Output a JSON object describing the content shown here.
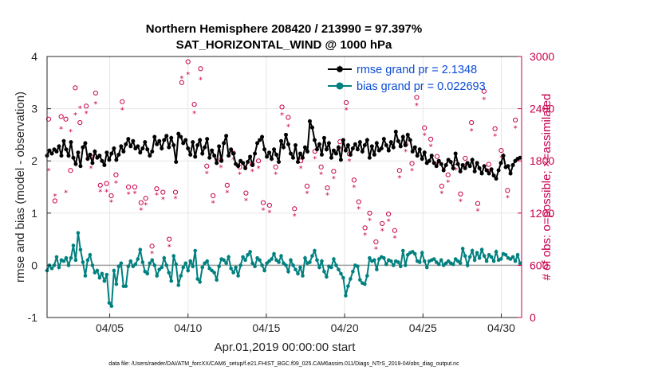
{
  "chart_data": {
    "type": "line",
    "title": "Northern Hemisphere 208420 / 213990 = 97.397%",
    "subtitle": "SAT_HORIZONTAL_WIND @ 1000 hPa",
    "xlabel": "Apr.01,2019 00:00:00 start",
    "ylabel": "rmse and bias (model - observation)",
    "ylabel_right": "# of obs: o=possible; ×=assimilated",
    "footnote": "data file: /Users/raeder/DAI/ATM_forcXX/CAM6_setup/f.e21.FHIST_BGC.f09_025.CAM6assim.011/Diags_NTrS_2019-04/obs_diag_output.nc",
    "xlim": [
      1.0,
      31.3
    ],
    "ylim": [
      -1,
      4
    ],
    "ylim_right": [
      0,
      3000
    ],
    "x_ticks": [
      5,
      10,
      15,
      20,
      25,
      30
    ],
    "x_tick_labels": [
      "04/05",
      "04/10",
      "04/15",
      "04/20",
      "04/25",
      "04/30"
    ],
    "y_ticks": [
      -1,
      0,
      1,
      2,
      3,
      4
    ],
    "y_tick_labels": [
      "-1",
      "0",
      "1",
      "2",
      "3",
      "4"
    ],
    "y_ticks_right": [
      0,
      600,
      1200,
      1800,
      2400,
      3000
    ],
    "y_tick_labels_right": [
      "0",
      "600",
      "1200",
      "1800",
      "2400",
      "3000"
    ],
    "grid": true,
    "legend_position": "top-right",
    "colors": {
      "rmse": "#000000",
      "bias": "#00807f",
      "obs": "#c8004b",
      "zero_line": "#a0a0a0"
    },
    "series": [
      {
        "name": "rmse grand pr = 2.1348",
        "axis": "left",
        "values": [
          2.1,
          2.2,
          2.14,
          2.22,
          2.18,
          2.28,
          2.1,
          2.38,
          2.22,
          2.1,
          2.36,
          2.06,
          1.94,
          2.16,
          1.9,
          2.26,
          2.34,
          2.04,
          2.12,
          1.96,
          2.18,
          2.06,
          2.1,
          2.0,
          1.92,
          2.16,
          2.02,
          2.14,
          2.24,
          2.02,
          2.12,
          2.28,
          2.18,
          2.32,
          2.42,
          2.28,
          2.38,
          2.24,
          2.28,
          2.16,
          2.24,
          2.36,
          2.22,
          2.1,
          2.18,
          2.46,
          2.32,
          2.38,
          2.24,
          2.4,
          2.48,
          2.26,
          2.44,
          2.3,
          1.98,
          2.52,
          2.46,
          2.34,
          2.4,
          2.24,
          2.12,
          2.36,
          2.08,
          2.3,
          2.4,
          2.14,
          2.26,
          2.42,
          2.06,
          2.2,
          2.1,
          1.96,
          2.28,
          2.0,
          2.34,
          2.48,
          2.1,
          2.22,
          2.14,
          1.94,
          1.9,
          2.0,
          1.96,
          1.86,
          1.98,
          2.08,
          1.92,
          2.14,
          2.34,
          2.4,
          2.46,
          2.22,
          2.08,
          2.16,
          2.04,
          2.22,
          2.12,
          1.98,
          2.38,
          2.26,
          2.5,
          2.32,
          2.14,
          2.06,
          2.3,
          1.98,
          2.14,
          2.06,
          2.26,
          2.18,
          2.76,
          2.64,
          2.4,
          2.22,
          2.32,
          2.12,
          2.44,
          2.22,
          2.34,
          2.06,
          2.2,
          2.14,
          2.26,
          2.02,
          2.4,
          2.2,
          2.3,
          2.12,
          2.24,
          2.32,
          2.22,
          2.36,
          2.18,
          2.3,
          2.4,
          2.06,
          2.28,
          2.12,
          2.34,
          2.2,
          2.24,
          2.42,
          2.3,
          2.2,
          2.36,
          2.26,
          2.56,
          2.38,
          2.28,
          2.46,
          2.3,
          2.5,
          2.4,
          2.18,
          2.26,
          2.1,
          2.22,
          2.04,
          2.16,
          1.96,
          2.0,
          2.1,
          1.96,
          1.9,
          2.0,
          1.94,
          1.82,
          1.92,
          2.02,
          1.98,
          1.86,
          2.14,
          1.94,
          1.8,
          1.92,
          1.86,
          1.96,
          1.9,
          2.02,
          1.8,
          1.96,
          1.86,
          1.76,
          1.9,
          1.82,
          1.76,
          1.84,
          1.72,
          1.66,
          1.82,
          1.96,
          2.1,
          1.88,
          1.9,
          1.76,
          1.92,
          2.0,
          2.04,
          2.06
        ]
      },
      {
        "name": "bias grand pr = 0.022693",
        "axis": "left",
        "values": [
          -0.1,
          0.0,
          -0.06,
          0.0,
          0.16,
          -0.04,
          0.1,
          0.08,
          0.14,
          0.0,
          0.14,
          0.38,
          0.1,
          0.62,
          0.3,
          0.06,
          -0.2,
          0.1,
          0.2,
          0.0,
          -0.14,
          -0.1,
          -0.24,
          -0.16,
          -0.3,
          -0.18,
          -0.72,
          -0.78,
          -0.1,
          -0.36,
          -0.02,
          0.04,
          -0.4,
          -0.4,
          -0.02,
          0.08,
          -0.02,
          0.02,
          0.12,
          0.3,
          0.06,
          -0.12,
          -0.16,
          0.04,
          0.1,
          0.0,
          -0.2,
          -0.08,
          -0.04,
          0.14,
          0.0,
          -0.14,
          -0.3,
          0.18,
          0.02,
          -0.38,
          -0.2,
          -0.04,
          0.04,
          -0.1,
          0.08,
          -0.02,
          0.28,
          -0.26,
          -0.32,
          -0.04,
          0.04,
          0.08,
          -0.06,
          -0.1,
          -0.14,
          -0.28,
          -0.02,
          0.12,
          0.1,
          0.04,
          0.16,
          -0.06,
          -0.14,
          -0.04,
          -0.2,
          0.0,
          0.16,
          0.1,
          0.2,
          0.26,
          0.04,
          -0.02,
          0.14,
          0.1,
          0.0,
          -0.1,
          0.04,
          0.08,
          0.12,
          0.22,
          0.1,
          0.06,
          0.18,
          0.04,
          0.0,
          -0.12,
          0.1,
          0.0,
          -0.08,
          -0.16,
          -0.04,
          -0.2,
          0.14,
          0.04,
          0.06,
          0.18,
          0.28,
          0.1,
          -0.04,
          0.08,
          -0.12,
          -0.22,
          -0.02,
          -0.04,
          0.12,
          0.0,
          -0.08,
          -0.16,
          -0.24,
          -0.58,
          -0.4,
          -0.26,
          -0.12,
          0.0,
          -0.02,
          -0.28,
          -0.34,
          -0.36,
          -0.2,
          0.14,
          0.08,
          0.1,
          -0.08,
          0.12,
          0.16,
          0.14,
          0.02,
          0.1,
          0.08,
          0.0,
          0.08,
          0.06,
          -0.02,
          0.28,
          0.0,
          0.2,
          0.24,
          0.26,
          0.22,
          0.08,
          0.06,
          0.24,
          0.08,
          -0.04,
          0.08,
          0.1,
          0.12,
          0.06,
          0.02,
          0.1,
          0.0,
          0.04,
          0.08,
          0.04,
          0.02,
          0.12,
          0.08,
          0.04,
          0.32,
          0.18,
          0.0,
          0.16,
          0.28,
          0.1,
          0.24,
          0.14,
          0.3,
          0.18,
          0.08,
          0.2,
          0.16,
          0.08,
          0.26,
          0.1,
          0.12,
          0.22,
          0.2,
          0.14,
          0.12,
          0.16,
          0.08,
          0.2,
          0.04
        ]
      }
    ],
    "obs_possible": [
      [
        1.1,
        2280
      ],
      [
        1.5,
        1340
      ],
      [
        1.9,
        2310
      ],
      [
        2.2,
        2280
      ],
      [
        2.5,
        1690
      ],
      [
        2.8,
        2640
      ],
      [
        3.1,
        2240
      ],
      [
        3.5,
        2430
      ],
      [
        3.8,
        1850
      ],
      [
        4.1,
        2580
      ],
      [
        4.4,
        1520
      ],
      [
        4.8,
        1540
      ],
      [
        5.1,
        1400
      ],
      [
        5.4,
        1640
      ],
      [
        5.8,
        2480
      ],
      [
        6.2,
        1500
      ],
      [
        6.6,
        1500
      ],
      [
        7.0,
        1320
      ],
      [
        7.3,
        1370
      ],
      [
        7.7,
        820
      ],
      [
        8.0,
        1480
      ],
      [
        8.4,
        1440
      ],
      [
        8.8,
        900
      ],
      [
        9.2,
        1440
      ],
      [
        9.6,
        2700
      ],
      [
        10.0,
        2940
      ],
      [
        10.4,
        2450
      ],
      [
        10.8,
        2860
      ],
      [
        11.2,
        1740
      ],
      [
        11.6,
        1400
      ],
      [
        12.1,
        1810
      ],
      [
        12.5,
        1520
      ],
      [
        12.9,
        1890
      ],
      [
        13.3,
        1730
      ],
      [
        13.7,
        1430
      ],
      [
        14.1,
        1760
      ],
      [
        14.5,
        1800
      ],
      [
        14.8,
        1320
      ],
      [
        15.2,
        1290
      ],
      [
        15.6,
        1730
      ],
      [
        16.0,
        2420
      ],
      [
        16.4,
        2300
      ],
      [
        16.8,
        1250
      ],
      [
        17.2,
        1800
      ],
      [
        17.6,
        1510
      ],
      [
        18.1,
        1910
      ],
      [
        18.5,
        1730
      ],
      [
        18.9,
        1490
      ],
      [
        19.3,
        1680
      ],
      [
        19.7,
        2020
      ],
      [
        20.1,
        2470
      ],
      [
        20.3,
        1880
      ],
      [
        20.6,
        1580
      ],
      [
        20.9,
        1330
      ],
      [
        21.3,
        1030
      ],
      [
        21.6,
        1200
      ],
      [
        22.0,
        870
      ],
      [
        22.4,
        1080
      ],
      [
        22.8,
        1190
      ],
      [
        23.2,
        1000
      ],
      [
        23.5,
        1690
      ],
      [
        23.9,
        1990
      ],
      [
        24.3,
        1770
      ],
      [
        24.6,
        2530
      ],
      [
        25.1,
        2180
      ],
      [
        25.5,
        2050
      ],
      [
        25.9,
        1850
      ],
      [
        26.2,
        1510
      ],
      [
        26.6,
        1640
      ],
      [
        27.1,
        1780
      ],
      [
        27.4,
        1420
      ],
      [
        27.7,
        1830
      ],
      [
        28.1,
        2240
      ],
      [
        28.5,
        1310
      ],
      [
        28.9,
        2600
      ],
      [
        29.2,
        1760
      ],
      [
        29.6,
        2170
      ],
      [
        30.0,
        1920
      ],
      [
        30.4,
        1460
      ],
      [
        30.9,
        2270
      ]
    ],
    "obs_assimilated": [
      [
        1.1,
        1700
      ],
      [
        1.5,
        1410
      ],
      [
        1.9,
        2180
      ],
      [
        2.2,
        1450
      ],
      [
        2.5,
        2150
      ],
      [
        2.8,
        2340
      ],
      [
        3.1,
        2420
      ],
      [
        3.5,
        2360
      ],
      [
        3.8,
        1730
      ],
      [
        4.1,
        2470
      ],
      [
        4.4,
        1460
      ],
      [
        4.8,
        1460
      ],
      [
        5.1,
        1340
      ],
      [
        5.4,
        1560
      ],
      [
        5.8,
        2400
      ],
      [
        6.2,
        1430
      ],
      [
        6.6,
        1440
      ],
      [
        7.0,
        1250
      ],
      [
        7.3,
        1310
      ],
      [
        7.7,
        750
      ],
      [
        8.0,
        1420
      ],
      [
        8.4,
        1370
      ],
      [
        8.8,
        830
      ],
      [
        9.2,
        1380
      ],
      [
        9.6,
        2760
      ],
      [
        10.0,
        2810
      ],
      [
        10.4,
        2360
      ],
      [
        10.8,
        2750
      ],
      [
        11.2,
        1670
      ],
      [
        11.6,
        1330
      ],
      [
        12.1,
        1740
      ],
      [
        12.5,
        1450
      ],
      [
        12.9,
        1830
      ],
      [
        13.3,
        1660
      ],
      [
        13.7,
        1360
      ],
      [
        14.1,
        1690
      ],
      [
        14.5,
        1730
      ],
      [
        14.8,
        1250
      ],
      [
        15.2,
        1220
      ],
      [
        15.6,
        1660
      ],
      [
        16.0,
        2340
      ],
      [
        16.4,
        2210
      ],
      [
        16.8,
        1180
      ],
      [
        17.2,
        1730
      ],
      [
        17.6,
        1440
      ],
      [
        18.1,
        1840
      ],
      [
        18.5,
        1660
      ],
      [
        18.9,
        1420
      ],
      [
        19.3,
        1610
      ],
      [
        19.7,
        1950
      ],
      [
        20.1,
        2400
      ],
      [
        20.3,
        1810
      ],
      [
        20.6,
        1510
      ],
      [
        20.9,
        1260
      ],
      [
        21.3,
        960
      ],
      [
        21.6,
        1130
      ],
      [
        22.0,
        800
      ],
      [
        22.4,
        1010
      ],
      [
        22.8,
        1120
      ],
      [
        23.2,
        930
      ],
      [
        23.5,
        1620
      ],
      [
        23.9,
        1920
      ],
      [
        24.3,
        1700
      ],
      [
        24.6,
        2450
      ],
      [
        25.1,
        2110
      ],
      [
        25.5,
        1980
      ],
      [
        25.9,
        1780
      ],
      [
        26.2,
        1440
      ],
      [
        26.6,
        1570
      ],
      [
        27.1,
        1710
      ],
      [
        27.4,
        1350
      ],
      [
        27.7,
        1760
      ],
      [
        28.1,
        2160
      ],
      [
        28.5,
        1240
      ],
      [
        28.9,
        2520
      ],
      [
        29.2,
        1690
      ],
      [
        29.6,
        2100
      ],
      [
        30.0,
        1850
      ],
      [
        30.4,
        1390
      ],
      [
        30.9,
        2190
      ]
    ]
  }
}
